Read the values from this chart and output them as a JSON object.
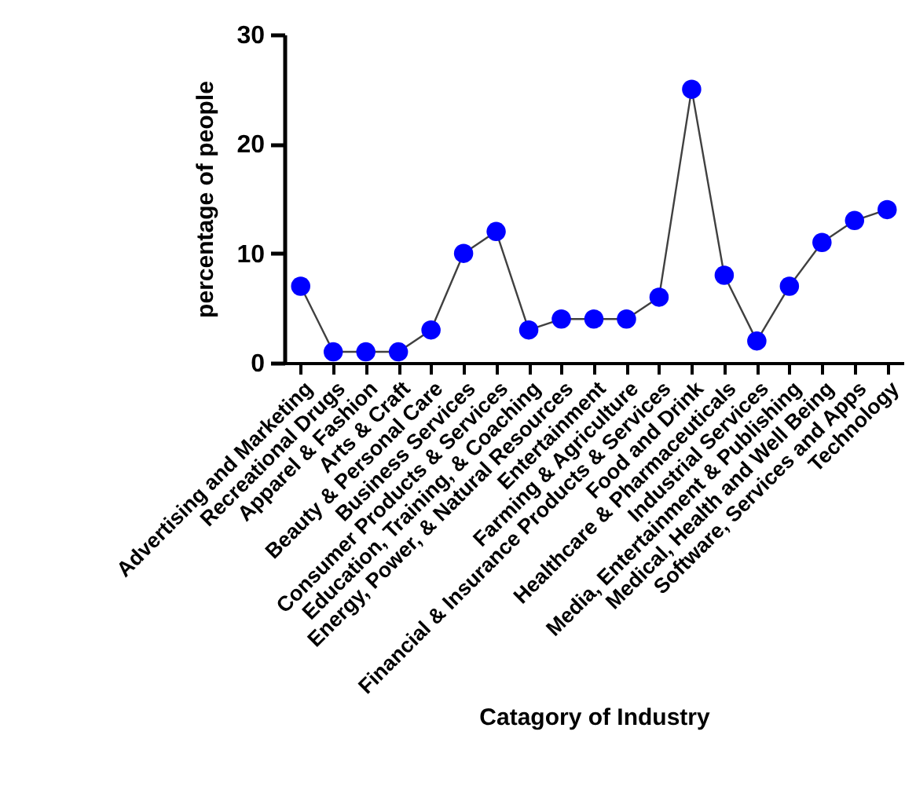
{
  "chart_data": {
    "type": "line",
    "xlabel": "Catagory of Industry",
    "ylabel": "percentage of people",
    "categories": [
      "Advertising and Marketing",
      "Recreational Drugs",
      "Apparel & Fashion",
      "Arts & Craft",
      "Beauty & Personal Care",
      "Business Services",
      "Consumer Products & Services",
      "Education, Training, & Coaching",
      "Energy, Power, & Natural Resources",
      "Entertainment",
      "Farming & Agriculture",
      "Financial & Insurance Products & Services",
      "Food and Drink",
      "Healthcare & Pharmaceuticals",
      "Industrial Services",
      "Media, Entertainment & Publishing",
      "Medical, Health and Well Being",
      "Software, Services and Apps",
      "Technology"
    ],
    "series": [
      {
        "color": "#0000ff",
        "values": [
          7,
          1,
          1,
          1,
          3,
          10,
          12,
          3,
          4,
          4,
          4,
          6,
          25,
          8,
          2,
          7,
          11,
          13,
          14
        ]
      }
    ],
    "ylim": [
      0,
      30
    ],
    "yticks": [
      0,
      10,
      20,
      30
    ],
    "marker": "circle",
    "line_style": "solid",
    "grid": false
  }
}
